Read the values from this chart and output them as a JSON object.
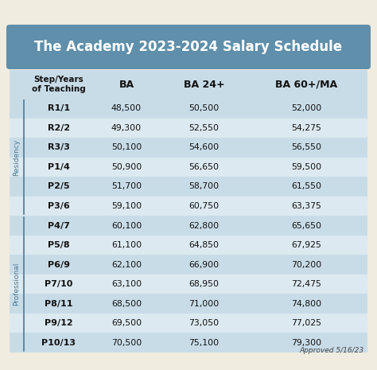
{
  "title": "The Academy 2023-2024 Salary Schedule",
  "title_bg": "#5f8faa",
  "title_color": "#ffffff",
  "table_bg_light": "#c8dce8",
  "table_bg_medium": "#dce9f0",
  "outer_bg": "#f0ece0",
  "header_row": [
    "Step/Years\nof Teaching",
    "BA",
    "BA 24+",
    "BA 60+/MA"
  ],
  "row_labels": [
    "R1/1",
    "R2/2",
    "R3/3",
    "P1/4",
    "P2/5",
    "P3/6",
    "P4/7",
    "P5/8",
    "P6/9",
    "P7/10",
    "P8/11",
    "P9/12",
    "P10/13"
  ],
  "ba": [
    "48,500",
    "49,300",
    "50,100",
    "50,900",
    "51,700",
    "59,100",
    "60,100",
    "61,100",
    "62,100",
    "63,100",
    "68,500",
    "69,500",
    "70,500"
  ],
  "ba24": [
    "50,500",
    "52,550",
    "54,600",
    "56,650",
    "58,700",
    "60,750",
    "62,800",
    "64,850",
    "66,900",
    "68,950",
    "71,000",
    "73,050",
    "75,100"
  ],
  "ba60": [
    "52,000",
    "54,275",
    "56,550",
    "59,500",
    "61,550",
    "63,375",
    "65,650",
    "67,925",
    "70,200",
    "72,475",
    "74,800",
    "77,025",
    "79,300"
  ],
  "residency_rows": [
    0,
    1,
    2,
    3,
    4,
    5
  ],
  "professional_rows": [
    6,
    7,
    8,
    9,
    10,
    11,
    12
  ],
  "approved_text": "Approved 5/16/23",
  "sidebar_line_color": "#4a7a96",
  "sidebar_text_color": "#4a7a96"
}
